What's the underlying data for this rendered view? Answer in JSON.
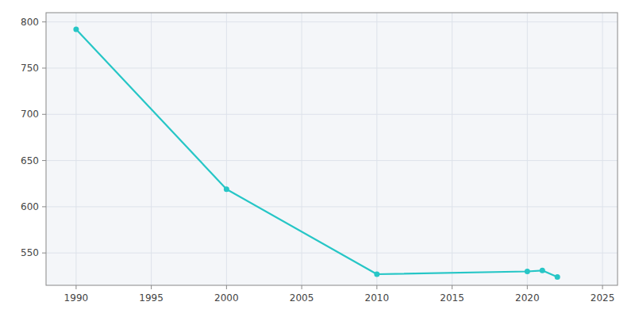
{
  "chart_data": {
    "type": "line",
    "x": [
      1990,
      2000,
      2010,
      2020,
      2021,
      2022
    ],
    "values": [
      792,
      619,
      527,
      530,
      531,
      524
    ],
    "color": "#26c6c6",
    "marker": "circle",
    "xlim": [
      1988,
      2026
    ],
    "ylim": [
      515,
      810
    ],
    "xticks": [
      1990,
      1995,
      2000,
      2005,
      2010,
      2015,
      2020,
      2025
    ],
    "yticks": [
      550,
      600,
      650,
      700,
      750,
      800
    ],
    "grid": true
  }
}
